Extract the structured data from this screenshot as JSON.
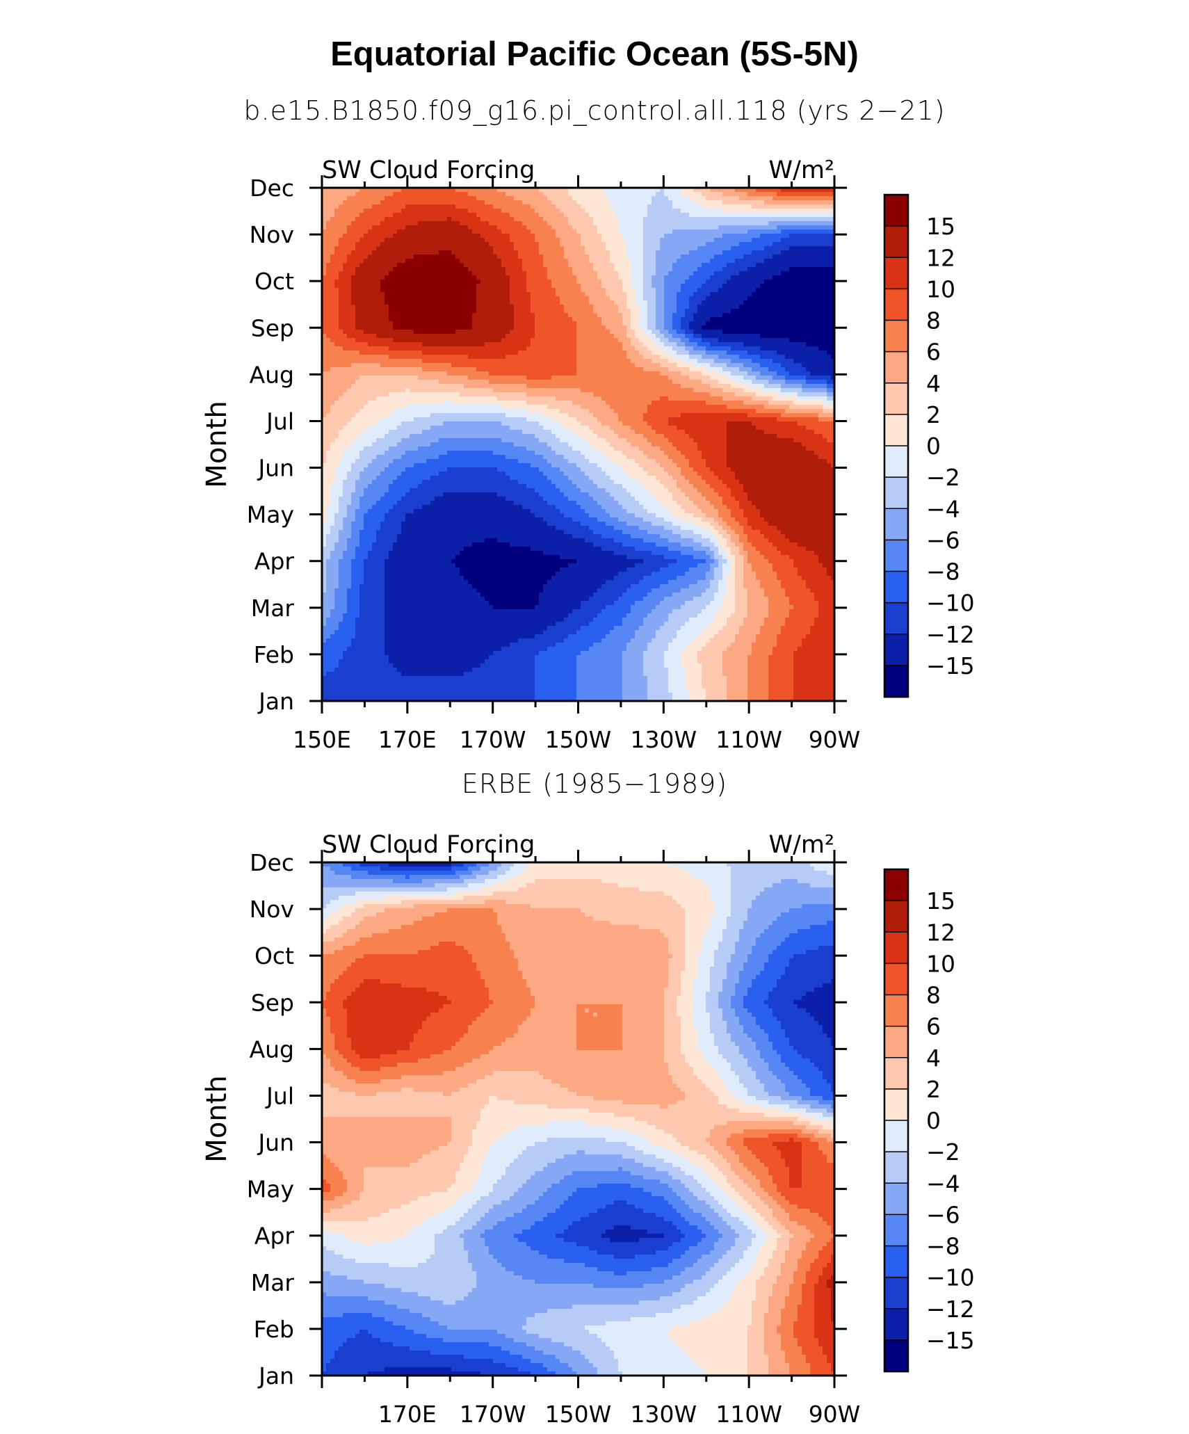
{
  "page": {
    "title": "Equatorial Pacific Ocean (5S-5N)",
    "subtitle_model": "b.e15.B1850.f09_g16.pi_control.all.118 (yrs 2−21)",
    "subtitle_obs": "ERBE (1985−1989)"
  },
  "colors": {
    "levels": [
      "#00007f",
      "#0b1fa8",
      "#1a3fce",
      "#2a60f0",
      "#5787f5",
      "#86a8f5",
      "#b6ccf6",
      "#e0ecfb",
      "#fde6d6",
      "#fdc8ad",
      "#fca882",
      "#f8824f",
      "#f0552a",
      "#d93316",
      "#b01e0a",
      "#8a0000"
    ]
  },
  "chart_data": [
    {
      "type": "heatmap",
      "name": "model",
      "left_label": "SW Cloud Forcing",
      "right_label": "W/m²",
      "ylabel": "Month",
      "xlabel": "",
      "x_range": [
        150,
        270
      ],
      "x_ticks": [
        150,
        170,
        190,
        210,
        230,
        250,
        270
      ],
      "x_tick_labels": [
        "150E",
        "170E",
        "170W",
        "150W",
        "130W",
        "110W",
        "90W"
      ],
      "y_tick_labels": [
        "Jan",
        "Feb",
        "Mar",
        "Apr",
        "May",
        "Jun",
        "Jul",
        "Aug",
        "Sep",
        "Oct",
        "Nov",
        "Dec"
      ],
      "colorbar": {
        "levels": [
          -15,
          -12,
          -10,
          -8,
          -6,
          -4,
          -2,
          0,
          2,
          4,
          6,
          8,
          10,
          12,
          15
        ],
        "labels": [
          "15",
          "12",
          "10",
          "8",
          "6",
          "4",
          "2",
          "0",
          "−2",
          "−4",
          "−6",
          "−8",
          "−10",
          "−12",
          "−15"
        ]
      },
      "x": [
        150,
        160,
        170,
        180,
        190,
        200,
        210,
        220,
        230,
        240,
        250,
        260,
        270
      ],
      "y": [
        "Jan",
        "Feb",
        "Mar",
        "Apr",
        "May",
        "Jun",
        "Jul",
        "Aug",
        "Sep",
        "Oct",
        "Nov",
        "Dec"
      ],
      "z": [
        [
          -11,
          -11,
          -11,
          -11,
          -11,
          -10,
          -8,
          -6,
          -3,
          2,
          6,
          10,
          12
        ],
        [
          -9,
          -11,
          -13,
          -13,
          -12,
          -10,
          -8,
          -6,
          -2,
          3,
          6,
          10,
          12
        ],
        [
          -4,
          -11,
          -13,
          -14,
          -15,
          -15,
          -12,
          -9,
          -5,
          -2,
          4,
          8,
          11
        ],
        [
          -3,
          -10,
          -14,
          -15,
          -16,
          -16,
          -15,
          -13,
          -11,
          -8,
          6,
          10,
          13
        ],
        [
          1,
          -8,
          -12,
          -14,
          -14,
          -12,
          -9,
          -5,
          -1,
          4,
          11,
          15,
          14
        ],
        [
          2,
          -4,
          -8,
          -10,
          -10,
          -8,
          -4,
          0,
          4,
          10,
          14,
          15,
          12
        ],
        [
          4,
          1,
          -2,
          -4,
          -4,
          -2,
          2,
          6,
          10,
          12,
          12,
          10,
          8
        ],
        [
          6,
          4,
          4,
          6,
          8,
          9,
          8,
          8,
          6,
          2,
          -4,
          -10,
          -14
        ],
        [
          8,
          13,
          16,
          16,
          14,
          10,
          8,
          5,
          -6,
          -16,
          -17,
          -17,
          -17
        ],
        [
          8,
          14,
          17,
          17,
          14,
          9,
          6,
          2,
          -6,
          -10,
          -14,
          -17,
          -17
        ],
        [
          6,
          10,
          13,
          14,
          11,
          8,
          4,
          0,
          -4,
          -5,
          -7,
          -10,
          -10
        ],
        [
          4,
          6,
          8,
          8,
          6,
          4,
          1,
          -1,
          -2,
          4,
          8,
          12,
          12
        ]
      ]
    },
    {
      "type": "heatmap",
      "name": "erbe",
      "left_label": "SW Cloud Forcing",
      "right_label": "W/m²",
      "ylabel": "Month",
      "xlabel": "",
      "x_range": [
        150,
        270
      ],
      "x_ticks": [
        170,
        190,
        210,
        230,
        250,
        270
      ],
      "x_tick_labels": [
        "170E",
        "170W",
        "150W",
        "130W",
        "110W",
        "90W"
      ],
      "y_tick_labels": [
        "Jan",
        "Feb",
        "Mar",
        "Apr",
        "May",
        "Jun",
        "Jul",
        "Aug",
        "Sep",
        "Oct",
        "Nov",
        "Dec"
      ],
      "colorbar": {
        "levels": [
          -15,
          -12,
          -10,
          -8,
          -6,
          -4,
          -2,
          0,
          2,
          4,
          6,
          8,
          10,
          12,
          15
        ],
        "labels": [
          "15",
          "12",
          "10",
          "8",
          "6",
          "4",
          "2",
          "0",
          "−2",
          "−4",
          "−6",
          "−8",
          "−10",
          "−12",
          "−15"
        ]
      },
      "x": [
        150,
        160,
        170,
        180,
        190,
        200,
        210,
        220,
        230,
        240,
        250,
        260,
        270
      ],
      "y": [
        "Jan",
        "Feb",
        "Mar",
        "Apr",
        "May",
        "Jun",
        "Jul",
        "Aug",
        "Sep",
        "Oct",
        "Nov",
        "Dec"
      ],
      "z": [
        [
          -10,
          -12,
          -13,
          -13,
          -12,
          -10,
          -6,
          -2,
          -1,
          0,
          2,
          6,
          10
        ],
        [
          -9,
          -10,
          -8,
          -6,
          -6,
          -3,
          -2,
          -1,
          0,
          1,
          2,
          8,
          12
        ],
        [
          -5,
          -4,
          -3,
          -2,
          -5,
          -6,
          -6,
          -7,
          -6,
          -3,
          1,
          6,
          13
        ],
        [
          -1,
          1,
          0,
          -3,
          -7,
          -9,
          -11,
          -13,
          -12,
          -8,
          -3,
          4,
          8
        ],
        [
          9,
          4,
          3,
          2,
          -2,
          -5,
          -8,
          -9,
          -7,
          -2,
          4,
          10,
          10
        ],
        [
          5,
          4,
          5,
          4,
          0,
          -2,
          -3,
          -2,
          1,
          4,
          9,
          11,
          6
        ],
        [
          3,
          4,
          3,
          4,
          2,
          3,
          4,
          5,
          5,
          3,
          -2,
          -6,
          -10
        ],
        [
          6,
          12,
          10,
          8,
          6,
          5,
          6,
          6,
          4,
          -1,
          -5,
          -10,
          -12
        ],
        [
          8,
          12,
          11,
          10,
          8,
          6,
          6,
          6,
          4,
          -2,
          -9,
          -12,
          -13
        ],
        [
          6,
          8,
          8,
          9,
          7,
          5,
          5,
          6,
          5,
          -1,
          -6,
          -10,
          -11
        ],
        [
          -2,
          3,
          5,
          6,
          6,
          4,
          4,
          3,
          3,
          1,
          -4,
          -6,
          -7
        ],
        [
          -6,
          -11,
          -14,
          -13,
          -6,
          1,
          1,
          1,
          0,
          -1,
          -3,
          -3,
          0
        ]
      ]
    }
  ]
}
